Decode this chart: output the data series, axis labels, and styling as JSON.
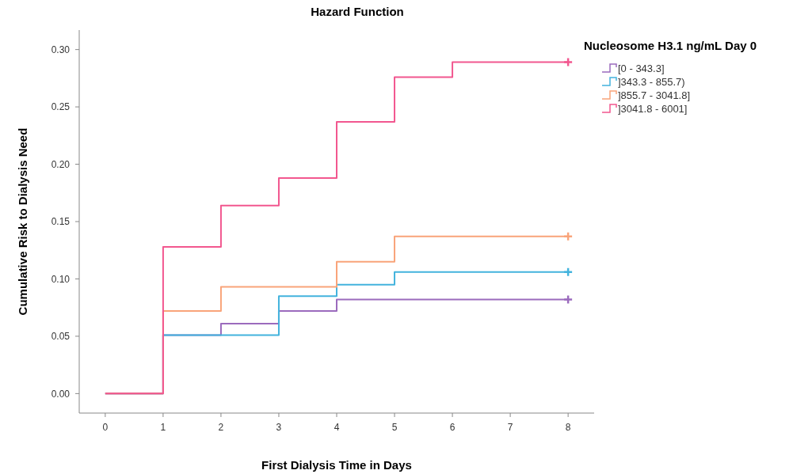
{
  "chart_data": {
    "type": "step",
    "title": "Hazard Function",
    "xlabel": "First Dialysis Time in Days",
    "ylabel": "Cumulative Risk to Dialysis Need",
    "legend_title": "Nucleosome H3.1 ng/mL Day 0",
    "legend": "right",
    "grid": false,
    "x": [
      0,
      1,
      2,
      3,
      4,
      5,
      6,
      7,
      8
    ],
    "xlim": [
      -0.45,
      8.45
    ],
    "xticks": [
      0,
      1,
      2,
      3,
      4,
      5,
      6,
      7,
      8
    ],
    "ylim": [
      -0.017,
      0.317
    ],
    "yticks": [
      {
        "value": 0,
        "label": "0.00"
      },
      {
        "value": 0.05,
        "label": "0.05"
      },
      {
        "value": 0.1,
        "label": "0.10"
      },
      {
        "value": 0.15,
        "label": "0.15"
      },
      {
        "value": 0.2,
        "label": "0.20"
      },
      {
        "value": 0.25,
        "label": "0.25"
      },
      {
        "value": 0.3,
        "label": "0.30"
      }
    ],
    "series": [
      {
        "name": "[0 - 343.3]",
        "color": "#9b6bbd",
        "values": [
          0,
          0.051,
          0.061,
          0.072,
          0.082,
          0.082,
          0.082,
          0.082,
          0.082
        ]
      },
      {
        "name": "]343.3 - 855.7)",
        "color": "#43b3dd",
        "values": [
          0,
          0.051,
          0.051,
          0.085,
          0.095,
          0.106,
          0.106,
          0.106,
          0.106
        ]
      },
      {
        "name": "]855.7 - 3041.8]",
        "color": "#f9a47a",
        "values": [
          0,
          0.072,
          0.093,
          0.093,
          0.115,
          0.137,
          0.137,
          0.137,
          0.137
        ]
      },
      {
        "name": "]3041.8 - 6001]",
        "color": "#f2578f",
        "values": [
          0,
          0.128,
          0.164,
          0.188,
          0.237,
          0.276,
          0.289,
          0.289,
          0.289
        ]
      },
      {
        "type": "scatter",
        "marker": "cross",
        "color": "#9b6bbd",
        "values": [
          null,
          null,
          null,
          null,
          null,
          null,
          null,
          null,
          0.082
        ]
      },
      {
        "type": "scatter",
        "marker": "cross",
        "color": "#43b3dd",
        "values": [
          null,
          null,
          null,
          null,
          null,
          null,
          null,
          null,
          0.106
        ]
      },
      {
        "type": "scatter",
        "marker": "cross",
        "color": "#f9a47a",
        "values": [
          null,
          null,
          null,
          null,
          null,
          null,
          null,
          null,
          0.137
        ]
      },
      {
        "type": "scatter",
        "marker": "cross",
        "color": "#f2578f",
        "values": [
          null,
          null,
          null,
          null,
          null,
          null,
          null,
          null,
          0.289
        ]
      }
    ]
  }
}
